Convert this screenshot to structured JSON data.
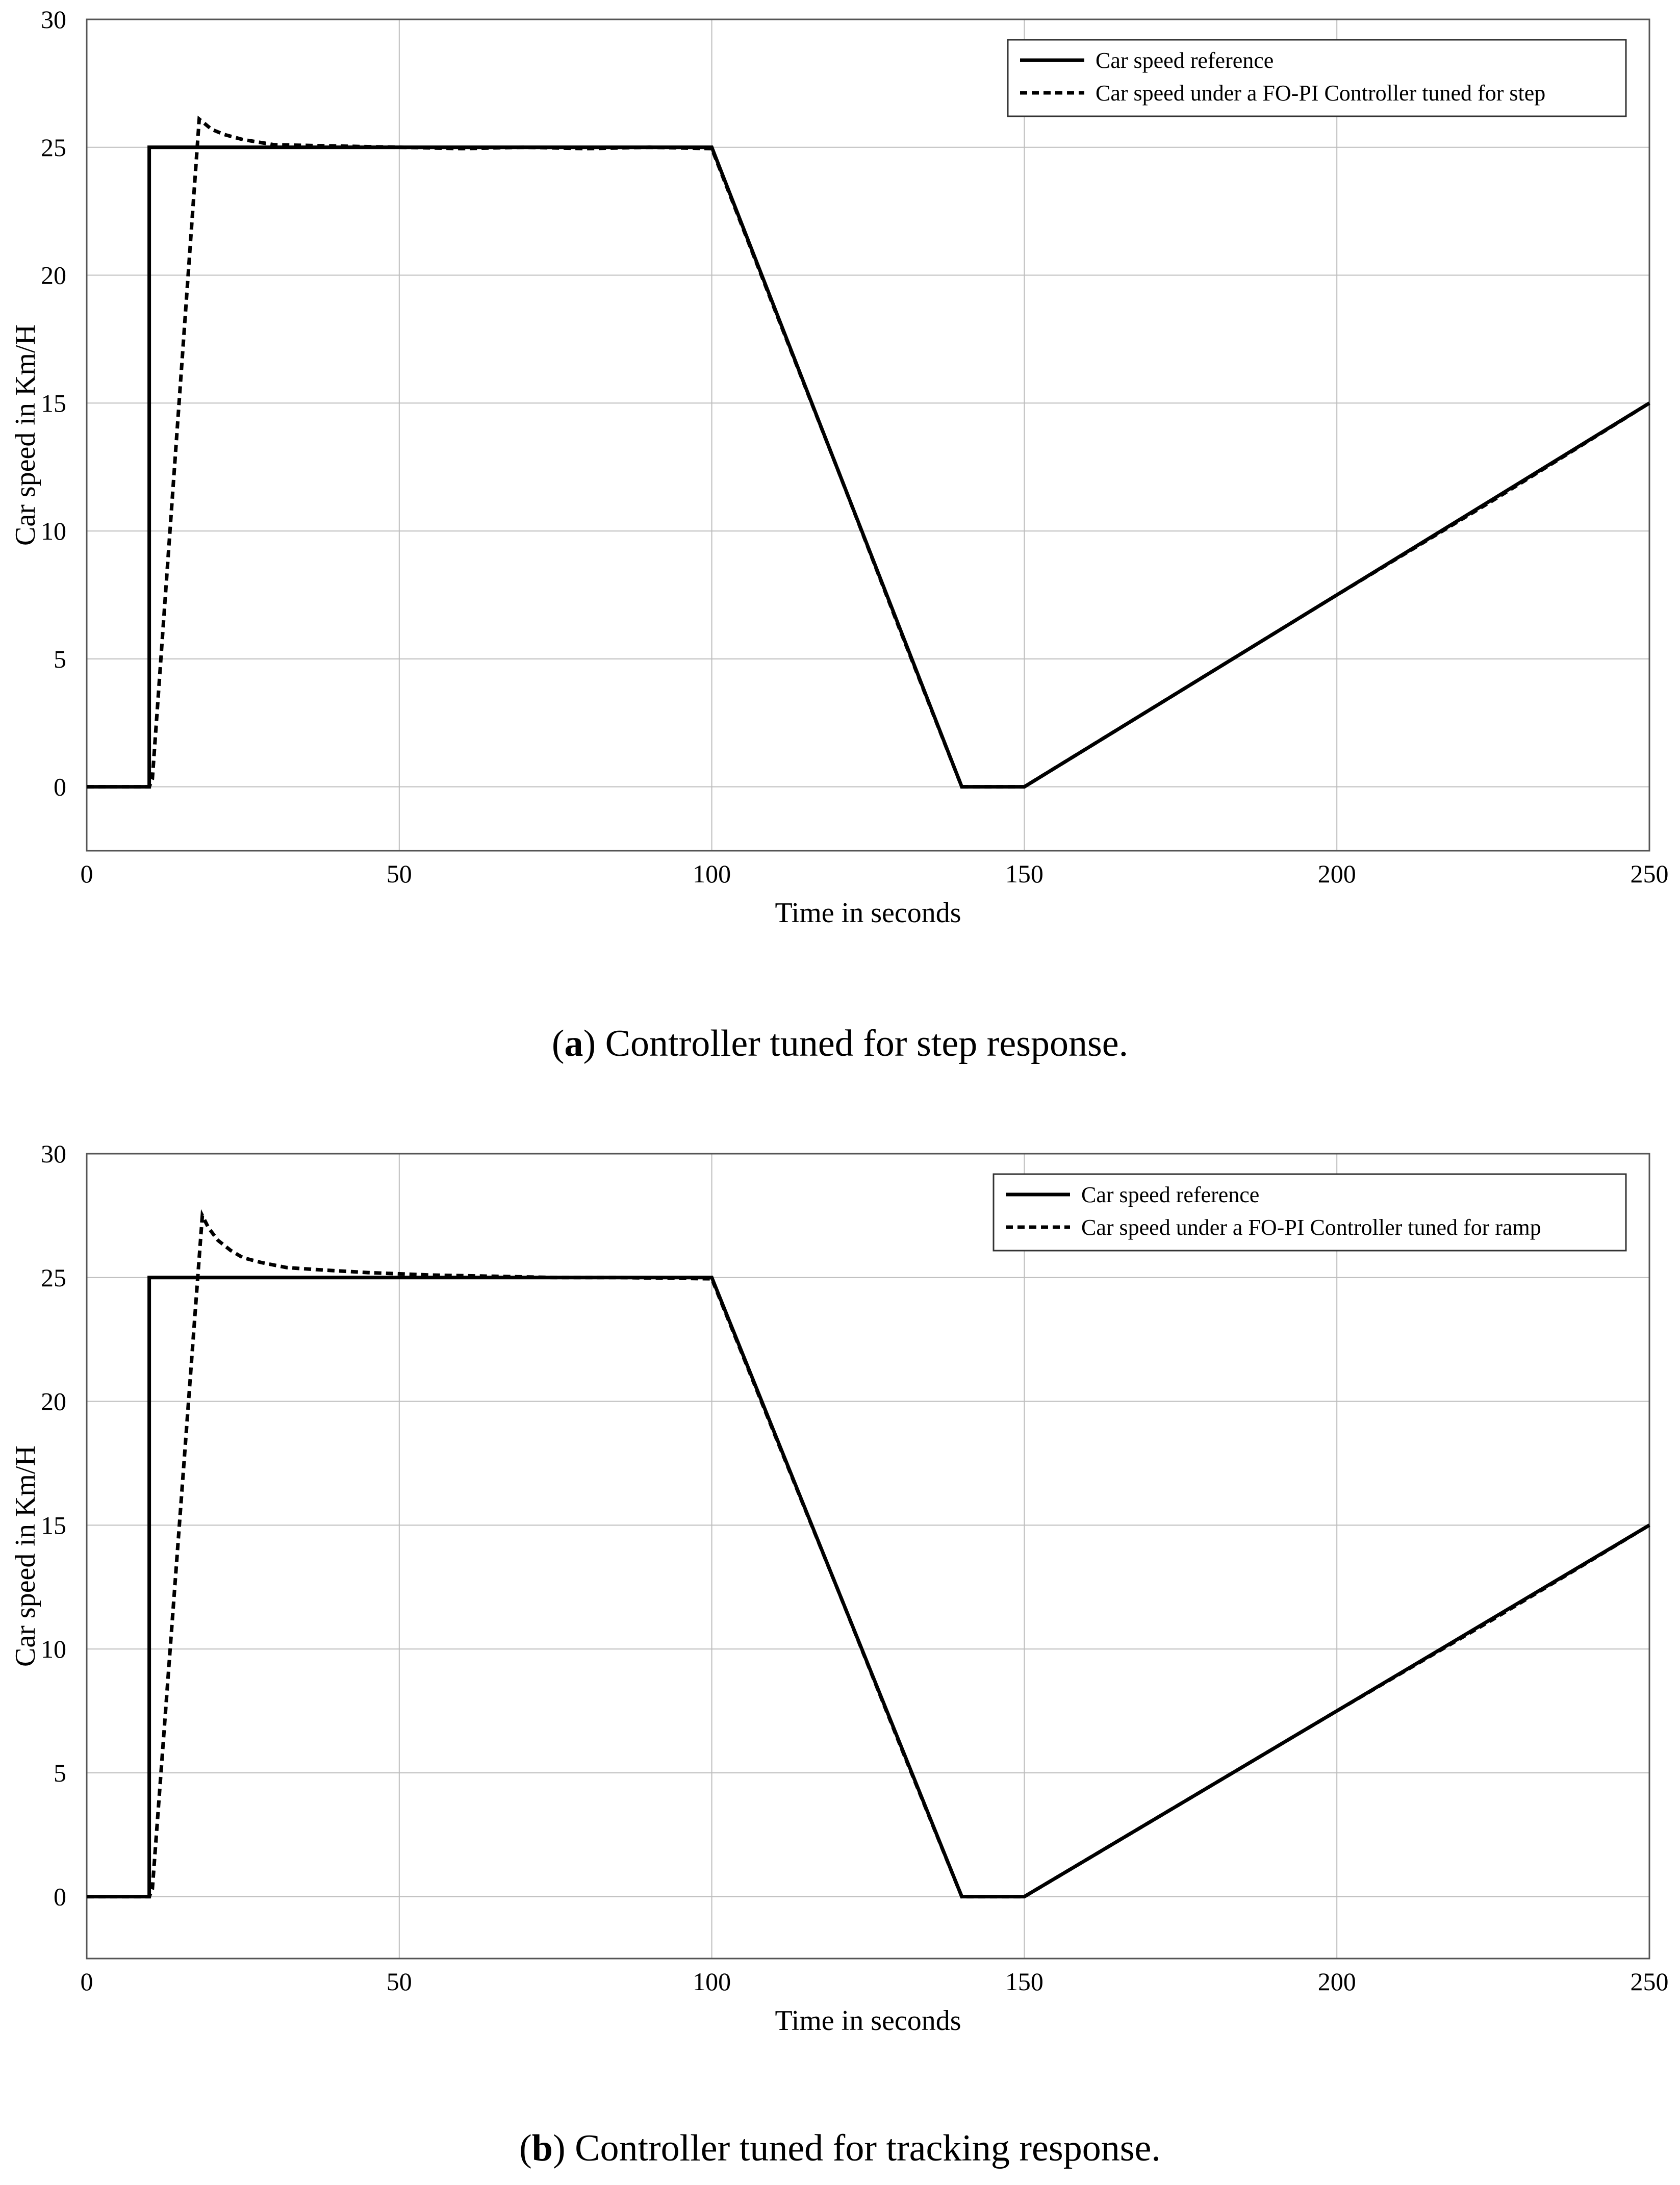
{
  "chart_data": [
    {
      "type": "line",
      "caption_label": "a",
      "caption_text": "Controller tuned for step response.",
      "xlabel": "Time in seconds",
      "ylabel": "Car speed in Km/H",
      "xlim": [
        0,
        250
      ],
      "ylim": [
        -2.5,
        30
      ],
      "xticks": [
        0,
        50,
        100,
        150,
        200,
        250
      ],
      "yticks": [
        0,
        5,
        10,
        15,
        20,
        25,
        30
      ],
      "grid": true,
      "legend_position": "top-right",
      "series": [
        {
          "name": "Car speed reference",
          "style": "solid",
          "x": [
            0,
            10,
            10,
            100,
            140,
            150,
            250
          ],
          "y": [
            0,
            0,
            25,
            25,
            0,
            0,
            15
          ]
        },
        {
          "name": "Car speed under a FO-PI Controller tuned for step",
          "style": "dashed",
          "x": [
            0,
            10,
            10.5,
            18,
            19,
            20,
            22,
            25,
            30,
            40,
            50,
            60,
            70,
            80,
            90,
            100,
            110,
            120,
            130,
            140,
            150,
            175,
            200,
            225,
            250
          ],
          "y": [
            0,
            0,
            0.3,
            26.1,
            25.9,
            25.7,
            25.5,
            25.3,
            25.1,
            25.05,
            25.0,
            24.95,
            25.0,
            24.95,
            25.0,
            24.95,
            18.7,
            12.5,
            6.2,
            0,
            0,
            3.75,
            7.5,
            11.2,
            15
          ]
        }
      ]
    },
    {
      "type": "line",
      "caption_label": "b",
      "caption_text": "Controller tuned for tracking response.",
      "xlabel": "Time in seconds",
      "ylabel": "Car speed in Km/H",
      "xlim": [
        0,
        250
      ],
      "ylim": [
        -2.5,
        30
      ],
      "xticks": [
        0,
        50,
        100,
        150,
        200,
        250
      ],
      "yticks": [
        0,
        5,
        10,
        15,
        20,
        25,
        30
      ],
      "grid": true,
      "legend_position": "top-right",
      "series": [
        {
          "name": "Car speed reference",
          "style": "solid",
          "x": [
            0,
            10,
            10,
            100,
            140,
            150,
            250
          ],
          "y": [
            0,
            0,
            25,
            25,
            0,
            0,
            15
          ]
        },
        {
          "name": "Car speed under a FO-PI Controller tuned for ramp",
          "style": "dashed",
          "x": [
            0,
            10,
            10.5,
            18.5,
            19.5,
            21,
            23,
            25,
            28,
            32,
            38,
            45,
            55,
            65,
            75,
            85,
            100,
            110,
            120,
            130,
            140,
            150,
            175,
            200,
            225,
            250
          ],
          "y": [
            0,
            0,
            0.3,
            27.5,
            27.0,
            26.5,
            26.1,
            25.8,
            25.6,
            25.4,
            25.3,
            25.2,
            25.1,
            25.05,
            25.0,
            25.0,
            24.95,
            18.7,
            12.5,
            6.2,
            0,
            0,
            3.75,
            7.5,
            11.2,
            15
          ]
        }
      ]
    }
  ]
}
